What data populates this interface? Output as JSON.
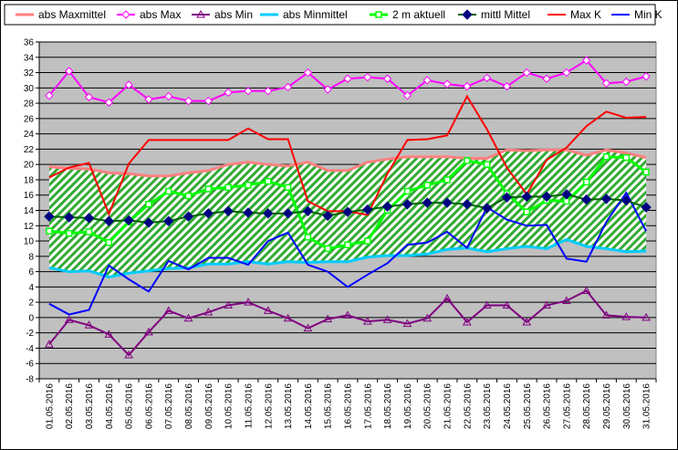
{
  "chart_data": {
    "type": "line",
    "title": "",
    "xlabel": "",
    "ylabel": "",
    "ylim": [
      -8,
      36
    ],
    "y_step": 2,
    "grid": true,
    "legend_position": "top",
    "plot_background": "#c0c0c0",
    "categories": [
      "01.05.2016",
      "02.05.2016",
      "03.05.2016",
      "04.05.2016",
      "05.05.2016",
      "06.05.2016",
      "07.05.2016",
      "08.05.2016",
      "09.05.2016",
      "10.05.2016",
      "11.05.2016",
      "12.05.2016",
      "13.05.2016",
      "14.05.2016",
      "15.05.2016",
      "16.05.2016",
      "17.05.2016",
      "18.05.2016",
      "19.05.2016",
      "20.05.2016",
      "21.05.2016",
      "22.05.2016",
      "23.05.2016",
      "24.05.2016",
      "25.05.2016",
      "26.05.2016",
      "27.05.2016",
      "28.05.2016",
      "29.05.2016",
      "30.05.2016",
      "31.05.2016"
    ],
    "series": [
      {
        "name": "abs Maxmittel",
        "color": "#ff8080",
        "marker": "none",
        "values": [
          19.7,
          19.5,
          19.4,
          18.9,
          18.8,
          18.5,
          18.5,
          18.9,
          19.2,
          20.0,
          20.3,
          20.0,
          19.8,
          20.3,
          19.2,
          19.2,
          20.3,
          20.7,
          21.0,
          21.0,
          21.0,
          20.8,
          20.8,
          21.9,
          21.8,
          21.9,
          21.9,
          21.2,
          21.9,
          21.5,
          20.9
        ]
      },
      {
        "name": "abs Max",
        "color": "#ff00ff",
        "marker": "diamond-open",
        "values": [
          29.0,
          32.2,
          28.8,
          28.1,
          30.4,
          28.5,
          28.9,
          28.3,
          28.3,
          29.4,
          29.6,
          29.6,
          30.1,
          32.0,
          29.8,
          31.2,
          31.4,
          31.2,
          29.0,
          31.0,
          30.5,
          30.2,
          31.3,
          30.2,
          32.0,
          31.2,
          32.0,
          33.6,
          30.6,
          30.8,
          31.5
        ]
      },
      {
        "name": "abs Min",
        "color": "#800080",
        "marker": "triangle-open",
        "values": [
          -3.5,
          -0.3,
          -1.0,
          -2.2,
          -4.9,
          -1.9,
          0.9,
          -0.1,
          0.7,
          1.6,
          2.0,
          0.9,
          -0.1,
          -1.4,
          -0.2,
          0.3,
          -0.5,
          -0.3,
          -0.8,
          -0.1,
          2.5,
          -0.6,
          1.6,
          1.6,
          -0.6,
          1.6,
          2.2,
          3.5,
          0.3,
          0.1,
          0.0
        ]
      },
      {
        "name": "abs Minmittel",
        "color": "#00ccff",
        "marker": "none",
        "values": [
          6.5,
          6.0,
          6.1,
          5.3,
          5.8,
          6.1,
          6.4,
          6.5,
          7.0,
          7.0,
          7.3,
          7.0,
          7.3,
          7.2,
          7.3,
          7.3,
          7.9,
          8.1,
          8.1,
          8.3,
          8.9,
          9.1,
          8.6,
          9.0,
          9.3,
          9.0,
          10.2,
          9.3,
          9.0,
          8.6,
          8.7
        ]
      },
      {
        "name": "2 m aktuell",
        "color": "#00ff00",
        "marker": "square-open",
        "values": [
          11.3,
          11.0,
          11.2,
          9.8,
          12.5,
          14.8,
          16.5,
          15.9,
          16.8,
          17.0,
          17.3,
          17.8,
          17.0,
          10.5,
          9.0,
          9.5,
          10.0,
          14.0,
          16.5,
          17.3,
          18.0,
          20.5,
          20.0,
          16.2,
          13.8,
          15.3,
          15.2,
          17.7,
          21.0,
          20.9,
          19.0
        ]
      },
      {
        "name": "mittl Mittel",
        "color": "#000080",
        "marker": "diamond-filled",
        "values": [
          13.2,
          13.1,
          13.0,
          12.6,
          12.7,
          12.4,
          12.6,
          13.2,
          13.6,
          13.9,
          13.7,
          13.6,
          13.6,
          13.9,
          13.3,
          13.8,
          14.1,
          14.5,
          14.8,
          15.0,
          15.0,
          14.8,
          14.3,
          15.7,
          15.8,
          15.8,
          16.1,
          15.4,
          15.5,
          15.3,
          14.4
        ]
      },
      {
        "name": "Max K",
        "color": "#ff0000",
        "marker": "none",
        "values": [
          18.3,
          19.6,
          20.2,
          13.5,
          20.1,
          23.2,
          23.2,
          23.2,
          23.2,
          23.2,
          24.7,
          23.3,
          23.3,
          15.2,
          13.9,
          13.9,
          13.4,
          18.8,
          23.2,
          23.3,
          23.8,
          28.9,
          24.6,
          19.6,
          16.1,
          20.6,
          22.2,
          25.0,
          26.9,
          26.1,
          26.2
        ]
      },
      {
        "name": "Min K",
        "color": "#0000ff",
        "marker": "none",
        "values": [
          1.8,
          0.4,
          1.0,
          6.8,
          5.0,
          3.4,
          7.4,
          6.3,
          7.8,
          7.8,
          6.9,
          10.0,
          11.1,
          6.9,
          6.0,
          4.0,
          5.6,
          7.1,
          9.5,
          9.8,
          11.2,
          9.1,
          14.4,
          12.8,
          12.0,
          12.1,
          7.7,
          7.3,
          12.5,
          16.3,
          11.3
        ]
      }
    ],
    "fill_band": {
      "upper": "abs Maxmittel",
      "lower": "abs Minmittel",
      "color": "#7fc97f",
      "pattern": "diagonal-hatch"
    }
  }
}
